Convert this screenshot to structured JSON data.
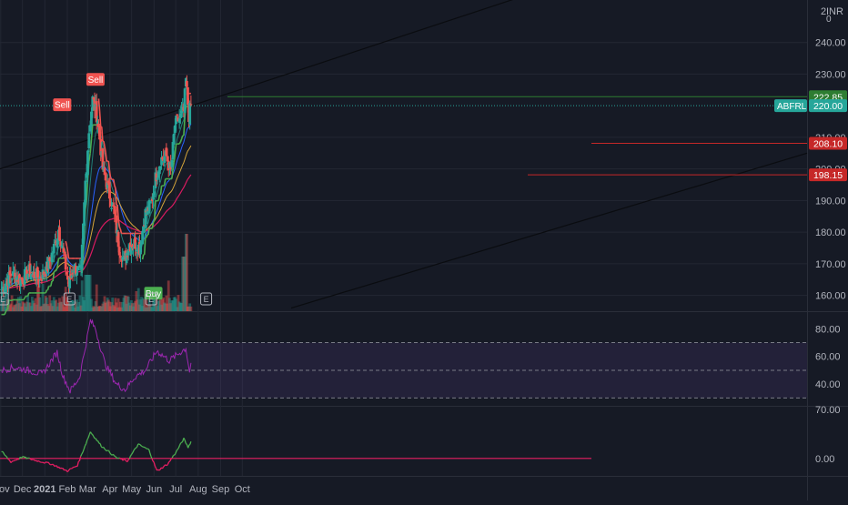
{
  "currency_label": "INR",
  "right_axis_top_tick": "2",
  "right_axis_top_tick2": "0",
  "colors": {
    "background": "#161a25",
    "grid": "#232733",
    "axis_text": "#b2b5be",
    "up": "#26a69a",
    "down": "#ef5350",
    "ema_fast": "#26a69a",
    "ema_mid": "#2962ff",
    "ema_slow": "#d4a43a",
    "ema_long": "#d81b60",
    "supertrend_up": "#4caf50",
    "supertrend_down": "#ef5350",
    "rsi_line": "#9c27b0",
    "osc_up": "#4caf50",
    "osc_down": "#e91e63",
    "price_badge": "#26a69a",
    "level_red": "#c62828",
    "level_green": "#2e7d32"
  },
  "price_badges": [
    {
      "label": "222.85",
      "value": 222.85,
      "color": "#2e7d32"
    },
    {
      "label": "220.00",
      "value": 220.0,
      "color": "#26a69a",
      "ticker": "ABFRL"
    },
    {
      "label": "208.10",
      "value": 208.1,
      "color": "#c62828"
    },
    {
      "label": "198.15",
      "value": 198.15,
      "color": "#c62828"
    }
  ],
  "chart_data": [
    {
      "type": "candlestick",
      "title": "",
      "ticker": "ABFRL",
      "currency": "INR",
      "x_tick_labels": [
        "Nov",
        "Dec",
        "2021",
        "Feb",
        "Mar",
        "Apr",
        "May",
        "Jun",
        "Jul",
        "Aug",
        "Sep",
        "Oct"
      ],
      "y_tick_labels": [
        "160.00",
        "170.00",
        "180.00",
        "190.00",
        "200.00",
        "210.00",
        "230.00",
        "240.00"
      ],
      "ylim": [
        155,
        252
      ],
      "grid": true,
      "signals": [
        {
          "label": "Sell",
          "date": "2021-01-25",
          "value": 216
        },
        {
          "label": "Sell",
          "date": "2021-03-12",
          "value": 224
        },
        {
          "label": "Buy",
          "date": "2021-05-31",
          "value": 165
        }
      ],
      "earnings_markers": [
        "2020-11-04",
        "2021-02-04",
        "2021-05-28",
        "2021-08-12"
      ],
      "horizontal_levels": [
        222.85,
        208.1,
        198.15
      ],
      "anchor_points": [
        {
          "date": "2020-11-02",
          "close": 162.0
        },
        {
          "date": "2020-11-15",
          "close": 166.5
        },
        {
          "date": "2020-11-30",
          "close": 165.0
        },
        {
          "date": "2020-12-10",
          "close": 167.5
        },
        {
          "date": "2020-12-25",
          "close": 165.5
        },
        {
          "date": "2021-01-05",
          "close": 169.0
        },
        {
          "date": "2021-01-15",
          "close": 176.0
        },
        {
          "date": "2021-01-20",
          "close": 181.0
        },
        {
          "date": "2021-01-27",
          "close": 173.0
        },
        {
          "date": "2021-02-03",
          "close": 163.0
        },
        {
          "date": "2021-02-10",
          "close": 169.0
        },
        {
          "date": "2021-02-20",
          "close": 167.0
        },
        {
          "date": "2021-02-26",
          "close": 196.0
        },
        {
          "date": "2021-03-03",
          "close": 212.0
        },
        {
          "date": "2021-03-08",
          "close": 222.0
        },
        {
          "date": "2021-03-15",
          "close": 216.0
        },
        {
          "date": "2021-03-22",
          "close": 200.0
        },
        {
          "date": "2021-03-30",
          "close": 193.0
        },
        {
          "date": "2021-04-06",
          "close": 187.0
        },
        {
          "date": "2021-04-14",
          "close": 175.0
        },
        {
          "date": "2021-04-20",
          "close": 171.0
        },
        {
          "date": "2021-04-28",
          "close": 176.0
        },
        {
          "date": "2021-05-06",
          "close": 176.5
        },
        {
          "date": "2021-05-12",
          "close": 175.0
        },
        {
          "date": "2021-05-20",
          "close": 186.0
        },
        {
          "date": "2021-05-28",
          "close": 189.0
        },
        {
          "date": "2021-06-03",
          "close": 197.0
        },
        {
          "date": "2021-06-10",
          "close": 203.0
        },
        {
          "date": "2021-06-18",
          "close": 204.0
        },
        {
          "date": "2021-06-24",
          "close": 199.0
        },
        {
          "date": "2021-06-30",
          "close": 214.0
        },
        {
          "date": "2021-07-06",
          "close": 216.0
        },
        {
          "date": "2021-07-12",
          "close": 218.0
        },
        {
          "date": "2021-07-15",
          "close": 228.0
        },
        {
          "date": "2021-07-19",
          "close": 217.0
        },
        {
          "date": "2021-07-22",
          "close": 220.0
        }
      ]
    },
    {
      "type": "line",
      "title": "",
      "name": "RSI panel",
      "y_tick_labels": [
        "40.00",
        "60.00",
        "80.00"
      ],
      "ylim": [
        25,
        92
      ],
      "band": [
        30,
        70
      ],
      "midline": 50,
      "anchor_points": [
        {
          "date": "2020-11-02",
          "value": 50
        },
        {
          "date": "2020-11-20",
          "value": 52
        },
        {
          "date": "2020-12-10",
          "value": 50
        },
        {
          "date": "2020-12-28",
          "value": 47
        },
        {
          "date": "2021-01-18",
          "value": 63
        },
        {
          "date": "2021-01-26",
          "value": 46
        },
        {
          "date": "2021-02-05",
          "value": 35
        },
        {
          "date": "2021-02-18",
          "value": 45
        },
        {
          "date": "2021-03-05",
          "value": 86
        },
        {
          "date": "2021-03-12",
          "value": 80
        },
        {
          "date": "2021-03-25",
          "value": 55
        },
        {
          "date": "2021-04-10",
          "value": 40
        },
        {
          "date": "2021-04-22",
          "value": 36
        },
        {
          "date": "2021-05-05",
          "value": 45
        },
        {
          "date": "2021-05-20",
          "value": 50
        },
        {
          "date": "2021-06-05",
          "value": 64
        },
        {
          "date": "2021-06-22",
          "value": 57
        },
        {
          "date": "2021-07-05",
          "value": 62
        },
        {
          "date": "2021-07-15",
          "value": 66
        },
        {
          "date": "2021-07-20",
          "value": 49
        },
        {
          "date": "2021-07-22",
          "value": 55
        }
      ]
    },
    {
      "type": "line",
      "title": "",
      "name": "oscillator panel",
      "y_tick_labels": [
        "70.00",
        "0.00"
      ],
      "ylim": [
        -25,
        70
      ],
      "zero_line": 0,
      "anchor_points": [
        {
          "date": "2020-11-02",
          "value": 10
        },
        {
          "date": "2020-11-15",
          "value": -5
        },
        {
          "date": "2020-12-01",
          "value": 2
        },
        {
          "date": "2020-12-20",
          "value": -3
        },
        {
          "date": "2021-01-10",
          "value": -8
        },
        {
          "date": "2021-02-01",
          "value": -18
        },
        {
          "date": "2021-02-15",
          "value": -10
        },
        {
          "date": "2021-03-05",
          "value": 38
        },
        {
          "date": "2021-03-20",
          "value": 18
        },
        {
          "date": "2021-04-10",
          "value": 1
        },
        {
          "date": "2021-04-25",
          "value": -4
        },
        {
          "date": "2021-05-10",
          "value": 20
        },
        {
          "date": "2021-05-25",
          "value": 12
        },
        {
          "date": "2021-06-05",
          "value": -18
        },
        {
          "date": "2021-06-20",
          "value": -8
        },
        {
          "date": "2021-07-02",
          "value": 10
        },
        {
          "date": "2021-07-12",
          "value": 28
        },
        {
          "date": "2021-07-18",
          "value": 16
        },
        {
          "date": "2021-07-22",
          "value": 24
        }
      ]
    }
  ],
  "pane_labels": {
    "rsi_top": "80.00",
    "osc_top": "70.00"
  }
}
